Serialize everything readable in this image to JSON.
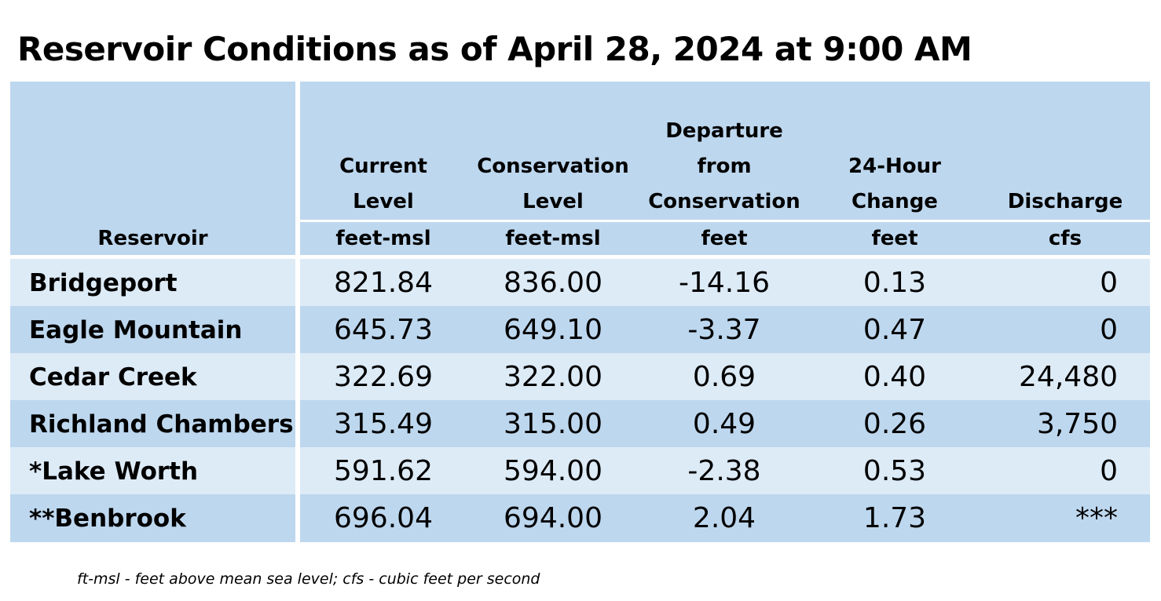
{
  "title": "Reservoir Conditions as of April 28, 2024 at 9:00 AM",
  "table": {
    "headers": [
      {
        "lines": [
          "Reservoir"
        ],
        "unit": ""
      },
      {
        "lines": [
          "Current",
          "Level"
        ],
        "unit": "feet-msl"
      },
      {
        "lines": [
          "Conservation",
          "Level"
        ],
        "unit": "feet-msl"
      },
      {
        "lines": [
          "Departure",
          "from",
          "Conservation"
        ],
        "unit": "feet"
      },
      {
        "lines": [
          "24-Hour",
          "Change"
        ],
        "unit": "feet"
      },
      {
        "lines": [
          "Discharge"
        ],
        "unit": "cfs"
      }
    ],
    "rows": [
      {
        "reservoir": "Bridgeport",
        "current": "821.84",
        "conservation": "836.00",
        "departure": "-14.16",
        "change": "0.13",
        "discharge": "0"
      },
      {
        "reservoir": "Eagle Mountain",
        "current": "645.73",
        "conservation": "649.10",
        "departure": "-3.37",
        "change": "0.47",
        "discharge": "0"
      },
      {
        "reservoir": "Cedar Creek",
        "current": "322.69",
        "conservation": "322.00",
        "departure": "0.69",
        "change": "0.40",
        "discharge": "24,480"
      },
      {
        "reservoir": "Richland Chambers",
        "current": "315.49",
        "conservation": "315.00",
        "departure": "0.49",
        "change": "0.26",
        "discharge": "3,750"
      },
      {
        "reservoir": "*Lake Worth",
        "current": "591.62",
        "conservation": "594.00",
        "departure": "-2.38",
        "change": "0.53",
        "discharge": "0"
      },
      {
        "reservoir": "**Benbrook",
        "current": "696.04",
        "conservation": "694.00",
        "departure": "2.04",
        "change": "1.73",
        "discharge": "***"
      }
    ]
  },
  "footnote": "ft-msl - feet above mean sea level; cfs - cubic feet per second",
  "colors": {
    "header_bg": "#bdd7ee",
    "row_light": "#ddebf7",
    "row_dark": "#bdd7ee"
  }
}
